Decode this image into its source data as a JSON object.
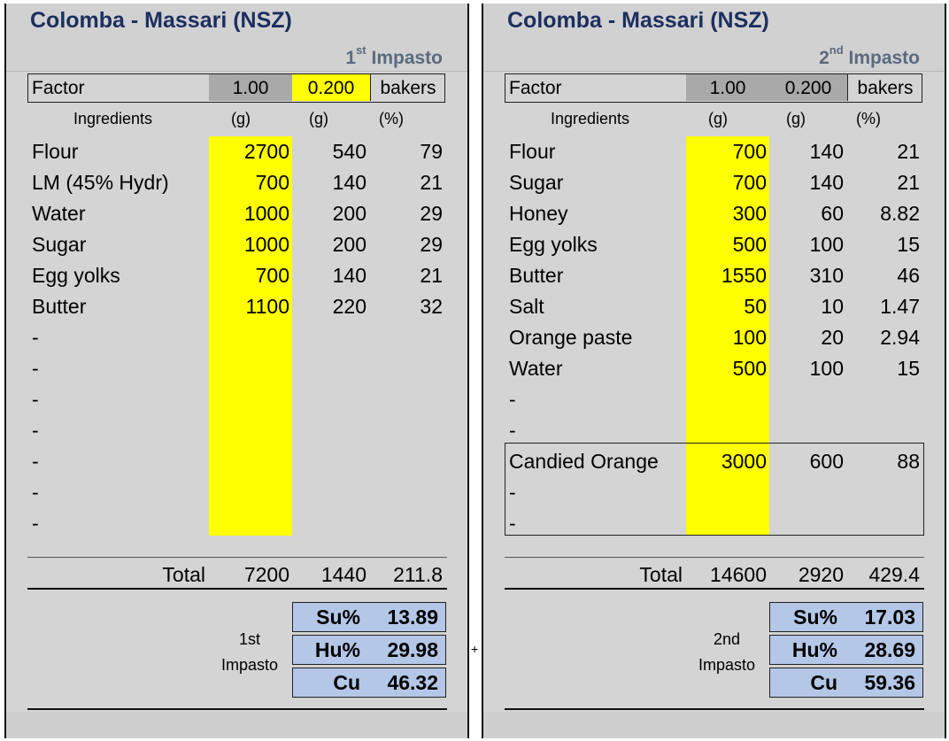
{
  "panels": [
    {
      "title": "Colomba - Massari (NSZ)",
      "phase_num": "1",
      "phase_sup": "st",
      "phase_word": "Impasto",
      "factor": {
        "label": "Factor",
        "value1": "1.00",
        "value2": "0.200",
        "unit": "bakers",
        "value2_highlight": "yellow"
      },
      "headers": {
        "ingredients": "Ingredients",
        "g1": "(g)",
        "g2": "(g)",
        "pct": "(%)"
      },
      "rows": [
        {
          "name": "Flour",
          "g1": "2700",
          "g2": "540",
          "pct": "79"
        },
        {
          "name": "LM (45% Hydr)",
          "g1": "700",
          "g2": "140",
          "pct": "21"
        },
        {
          "name": "Water",
          "g1": "1000",
          "g2": "200",
          "pct": "29"
        },
        {
          "name": "Sugar",
          "g1": "1000",
          "g2": "200",
          "pct": "29"
        },
        {
          "name": "Egg yolks",
          "g1": "700",
          "g2": "140",
          "pct": "21"
        },
        {
          "name": "Butter",
          "g1": "1100",
          "g2": "220",
          "pct": "32"
        },
        {
          "name": "-",
          "g1": "",
          "g2": "",
          "pct": ""
        },
        {
          "name": "-",
          "g1": "",
          "g2": "",
          "pct": ""
        },
        {
          "name": "-",
          "g1": "",
          "g2": "",
          "pct": ""
        },
        {
          "name": "-",
          "g1": "",
          "g2": "",
          "pct": ""
        },
        {
          "name": "-",
          "g1": "",
          "g2": "",
          "pct": ""
        },
        {
          "name": "-",
          "g1": "",
          "g2": "",
          "pct": ""
        },
        {
          "name": "-",
          "g1": "",
          "g2": "",
          "pct": ""
        }
      ],
      "total": {
        "label": "Total",
        "g1": "7200",
        "g2": "1440",
        "pct": "211.8"
      },
      "stage_line1": "1st",
      "stage_line2": "Impasto",
      "stats": [
        {
          "key": "Su%",
          "value": "13.89"
        },
        {
          "key": "Hu%",
          "value": "29.98"
        },
        {
          "key": "Cu",
          "value": "46.32"
        }
      ]
    },
    {
      "title": "Colomba - Massari (NSZ)",
      "phase_num": "2",
      "phase_sup": "nd",
      "phase_word": "Impasto",
      "factor": {
        "label": "Factor",
        "value1": "1.00",
        "value2": "0.200",
        "unit": "bakers",
        "value2_highlight": "gray"
      },
      "headers": {
        "ingredients": "Ingredients",
        "g1": "(g)",
        "g2": "(g)",
        "pct": "(%)"
      },
      "rows": [
        {
          "name": "Flour",
          "g1": "700",
          "g2": "140",
          "pct": "21"
        },
        {
          "name": "Sugar",
          "g1": "700",
          "g2": "140",
          "pct": "21"
        },
        {
          "name": "Honey",
          "g1": "300",
          "g2": "60",
          "pct": "8.82"
        },
        {
          "name": "Egg yolks",
          "g1": "500",
          "g2": "100",
          "pct": "15"
        },
        {
          "name": "Butter",
          "g1": "1550",
          "g2": "310",
          "pct": "46"
        },
        {
          "name": "Salt",
          "g1": "50",
          "g2": "10",
          "pct": "1.47"
        },
        {
          "name": "Orange paste",
          "g1": "100",
          "g2": "20",
          "pct": "2.94"
        },
        {
          "name": "Water",
          "g1": "500",
          "g2": "100",
          "pct": "15"
        },
        {
          "name": "-",
          "g1": "",
          "g2": "",
          "pct": ""
        },
        {
          "name": "-",
          "g1": "",
          "g2": "",
          "pct": ""
        },
        {
          "name": "Candied Orange",
          "g1": "3000",
          "g2": "600",
          "pct": "88"
        },
        {
          "name": "-",
          "g1": "",
          "g2": "",
          "pct": ""
        },
        {
          "name": "-",
          "g1": "",
          "g2": "",
          "pct": ""
        }
      ],
      "total": {
        "label": "Total",
        "g1": "14600",
        "g2": "2920",
        "pct": "429.4"
      },
      "stage_line1": "2nd",
      "stage_line2": "Impasto",
      "stats": [
        {
          "key": "Su%",
          "value": "17.03"
        },
        {
          "key": "Hu%",
          "value": "28.69"
        },
        {
          "key": "Cu",
          "value": "59.36"
        }
      ]
    }
  ],
  "separator": "+",
  "colors": {
    "title": "#1c2f5f",
    "highlight": "#ffff00",
    "stat_fill": "#b4c7e7",
    "panel_bg": "#d4d4d4"
  }
}
